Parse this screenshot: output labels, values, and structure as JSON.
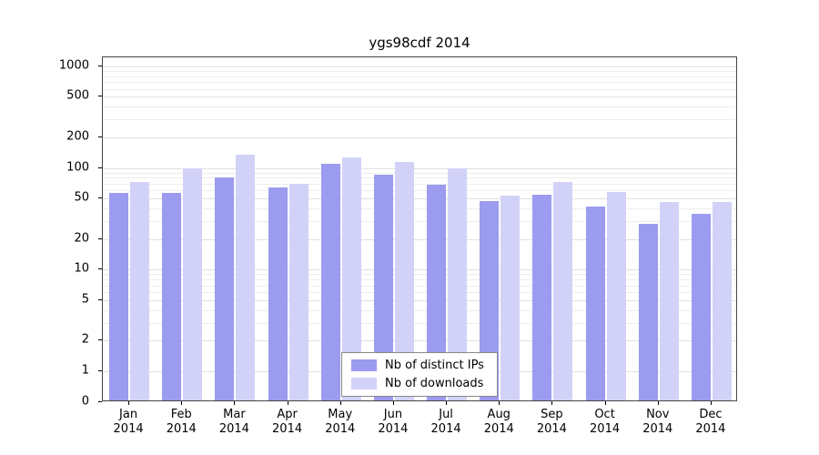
{
  "chart_data": {
    "type": "bar",
    "title": "ygs98cdf 2014",
    "year": "2014",
    "months": [
      "Jan",
      "Feb",
      "Mar",
      "Apr",
      "May",
      "Jun",
      "Jul",
      "Aug",
      "Sep",
      "Oct",
      "Nov",
      "Dec"
    ],
    "categories": [
      "Jan 2014",
      "Feb 2014",
      "Mar 2014",
      "Apr 2014",
      "May 2014",
      "Jun 2014",
      "Jul 2014",
      "Aug 2014",
      "Sep 2014",
      "Oct 2014",
      "Nov 2014",
      "Dec 2014"
    ],
    "series": [
      {
        "name": "Nb of distinct IPs",
        "color": "#9b9bef",
        "values": [
          55,
          54,
          78,
          62,
          105,
          82,
          66,
          45,
          52,
          40,
          27,
          34
        ]
      },
      {
        "name": "Nb of downloads",
        "color": "#d2d2f9",
        "values": [
          70,
          95,
          130,
          67,
          122,
          110,
          95,
          51,
          70,
          56,
          44,
          44
        ]
      }
    ],
    "yticks": [
      0,
      1,
      2,
      5,
      10,
      20,
      50,
      100,
      200,
      500,
      1000
    ],
    "ylim": [
      0,
      1000
    ],
    "yscale": "log",
    "grid": "horizontal",
    "legend_position": "bottom-center"
  }
}
